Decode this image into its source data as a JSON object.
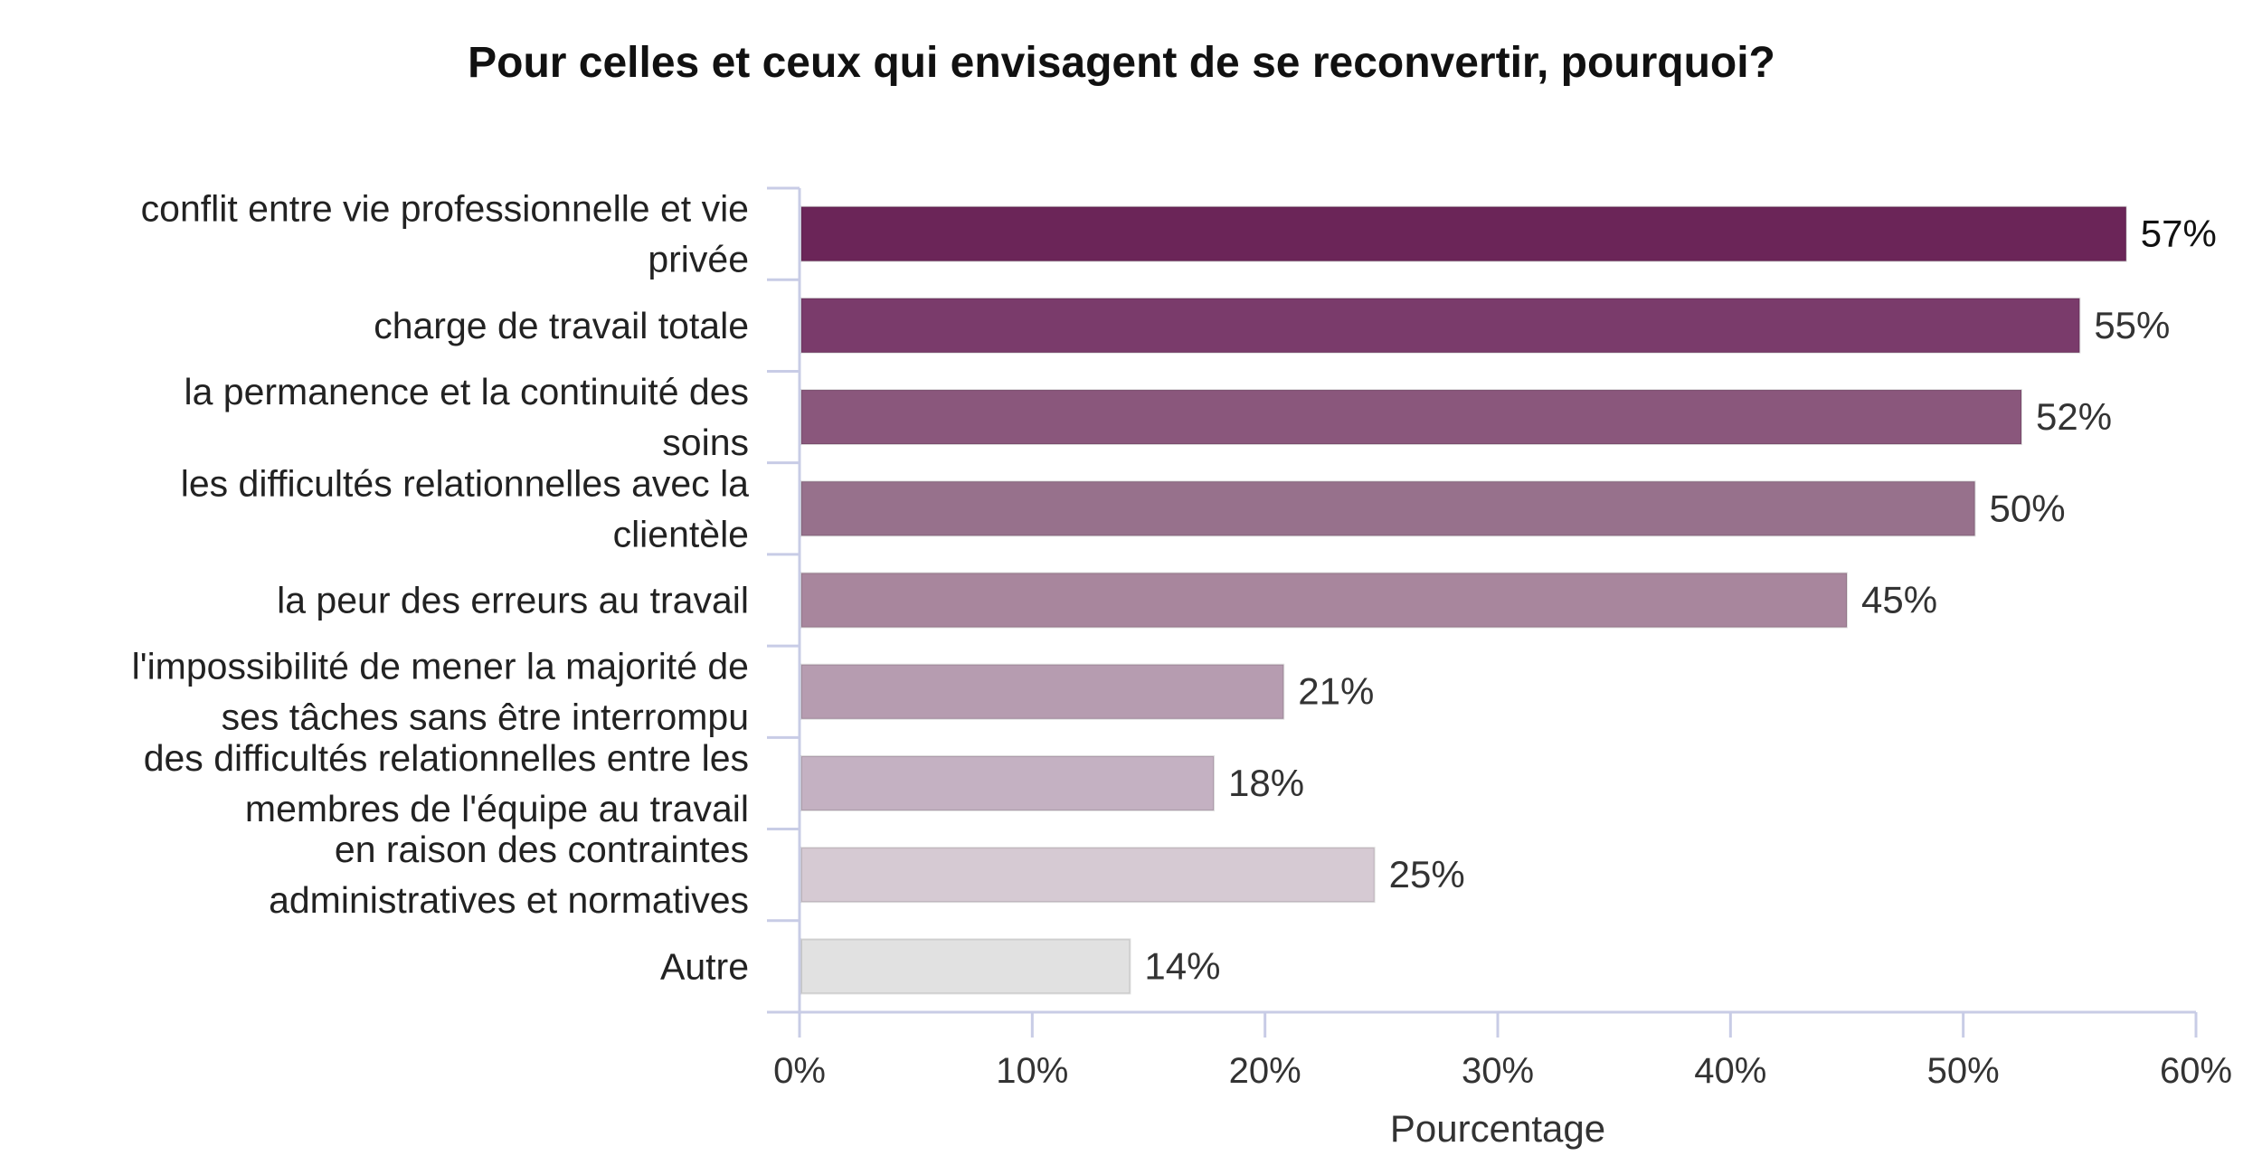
{
  "chart_data": {
    "type": "bar",
    "orientation": "horizontal",
    "title": "Pour celles et ceux qui envisagent de se reconvertir, pourquoi?",
    "xlabel": "Pourcentage",
    "ylabel": "",
    "xlim": [
      0,
      60
    ],
    "x_ticks": [
      {
        "value": 0,
        "label": "0%"
      },
      {
        "value": 10,
        "label": "10%"
      },
      {
        "value": 20,
        "label": "20%"
      },
      {
        "value": 30,
        "label": "30%"
      },
      {
        "value": 40,
        "label": "40%"
      },
      {
        "value": 50,
        "label": "50%"
      },
      {
        "value": 60,
        "label": "60%"
      }
    ],
    "grid": false,
    "legend": "none",
    "bars": [
      {
        "label_lines": [
          "conflit entre vie professionnelle et vie",
          "privée"
        ],
        "value": 57,
        "value_label": "57%",
        "color": "#6b2558"
      },
      {
        "label_lines": [
          "charge de travail totale"
        ],
        "value": 55,
        "value_label": "55%",
        "color": "#7a3b6b"
      },
      {
        "label_lines": [
          "la permanence et la continuité des",
          "soins"
        ],
        "value": 52.5,
        "value_label": "52%",
        "color": "#8a577c"
      },
      {
        "label_lines": [
          "les difficultés relationnelles avec la",
          "clientèle"
        ],
        "value": 50.5,
        "value_label": "50%",
        "color": "#97718c"
      },
      {
        "label_lines": [
          "la peur des erreurs au travail"
        ],
        "value": 45,
        "value_label": "45%",
        "color": "#a8869d"
      },
      {
        "label_lines": [
          "l'impossibilité de mener la majorité de",
          "ses tâches sans être interrompu"
        ],
        "value": 20.8,
        "value_label": "21%",
        "color": "#b69cb0"
      },
      {
        "label_lines": [
          "des difficultés relationnelles entre les",
          "membres de l'équipe au travail"
        ],
        "value": 17.8,
        "value_label": "18%",
        "color": "#c4b1c2"
      },
      {
        "label_lines": [
          "en raison des contraintes",
          "administratives et normatives"
        ],
        "value": 24.7,
        "value_label": "25%",
        "color": "#d6cad3"
      },
      {
        "label_lines": [
          "Autre"
        ],
        "value": 14.2,
        "value_label": "14%",
        "color": "#e1e1e1"
      }
    ]
  }
}
